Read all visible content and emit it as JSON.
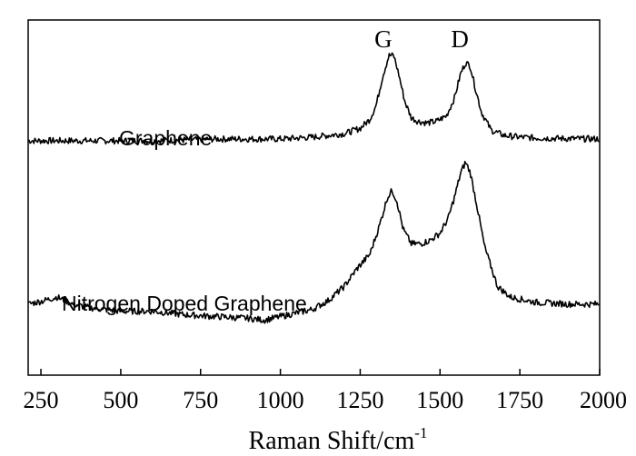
{
  "chart_data": {
    "type": "line",
    "xlabel": "Raman Shift/cm",
    "xlabel_superscript": "-1",
    "ylabel": "",
    "title": "",
    "xlim": [
      210,
      2000
    ],
    "ylim": [
      0,
      1
    ],
    "x_ticks": [
      250,
      500,
      750,
      1000,
      1250,
      1500,
      1750,
      2000
    ],
    "y_ticks_shown": false,
    "grid": false,
    "legend": "none",
    "peak_labels": [
      {
        "text": "G",
        "x": 1345
      },
      {
        "text": "D",
        "x": 1585
      }
    ],
    "series": [
      {
        "name": "Graphene",
        "x": [
          210,
          400,
          600,
          800,
          1000,
          1100,
          1150,
          1200,
          1250,
          1280,
          1300,
          1320,
          1340,
          1355,
          1370,
          1390,
          1410,
          1430,
          1460,
          1490,
          1520,
          1545,
          1565,
          1580,
          1595,
          1610,
          1630,
          1660,
          1700,
          1750,
          1800,
          1900,
          2000
        ],
        "y": [
          0.66,
          0.66,
          0.66,
          0.665,
          0.665,
          0.67,
          0.675,
          0.68,
          0.695,
          0.72,
          0.76,
          0.84,
          0.9,
          0.9,
          0.85,
          0.77,
          0.725,
          0.715,
          0.71,
          0.715,
          0.73,
          0.78,
          0.85,
          0.88,
          0.87,
          0.81,
          0.74,
          0.69,
          0.675,
          0.67,
          0.668,
          0.666,
          0.665
        ]
      },
      {
        "name": "Nitrogen Doped Graphene",
        "x": [
          210,
          260,
          300,
          350,
          400,
          500,
          600,
          700,
          800,
          900,
          950,
          1000,
          1100,
          1150,
          1200,
          1240,
          1280,
          1310,
          1335,
          1350,
          1365,
          1385,
          1410,
          1440,
          1470,
          1500,
          1525,
          1545,
          1565,
          1580,
          1595,
          1615,
          1640,
          1680,
          1720,
          1800,
          1900,
          2000
        ],
        "y": [
          0.2,
          0.21,
          0.22,
          0.2,
          0.19,
          0.18,
          0.18,
          0.17,
          0.165,
          0.16,
          0.155,
          0.165,
          0.185,
          0.21,
          0.25,
          0.3,
          0.34,
          0.42,
          0.5,
          0.52,
          0.49,
          0.41,
          0.37,
          0.37,
          0.38,
          0.4,
          0.44,
          0.5,
          0.57,
          0.6,
          0.57,
          0.48,
          0.36,
          0.25,
          0.22,
          0.205,
          0.2,
          0.2
        ]
      }
    ]
  }
}
